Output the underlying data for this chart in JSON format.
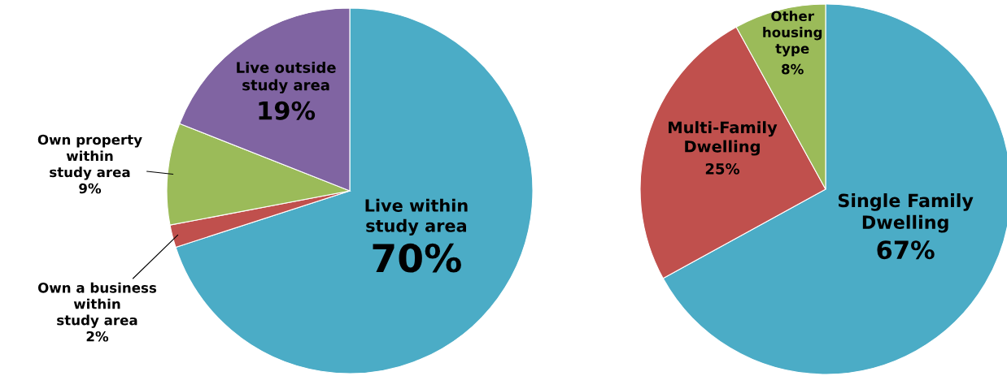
{
  "chart_data": [
    {
      "type": "pie",
      "categories": [
        "Live within\nstudy area",
        "Own a business\nwithin\nstudy area",
        "Own property\nwithin\nstudy area",
        "Live outside\nstudy area"
      ],
      "values": [
        70,
        2,
        9,
        19
      ],
      "value_labels": [
        "70%",
        "2%",
        "9%",
        "19%"
      ],
      "colors": [
        "#4bacc6",
        "#c0504d",
        "#9bbb59",
        "#8064a2"
      ]
    },
    {
      "type": "pie",
      "categories": [
        "Single Family\nDwelling",
        "Multi-Family\nDwelling",
        "Other\nhousing\ntype"
      ],
      "values": [
        67,
        25,
        8
      ],
      "value_labels": [
        "67%",
        "25%",
        "8%"
      ],
      "colors": [
        "#4bacc6",
        "#c0504d",
        "#9bbb59"
      ]
    }
  ]
}
